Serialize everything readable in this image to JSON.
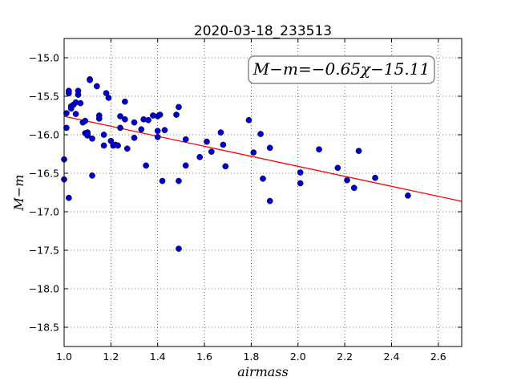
{
  "chart_data": {
    "type": "scatter",
    "title": "2020-03-18_233513",
    "xlabel": "airmass",
    "ylabel": "M−m",
    "xlim": [
      1.0,
      2.7
    ],
    "ylim": [
      -18.75,
      -14.75
    ],
    "y_inverted": true,
    "grid": true,
    "grid_style": "dotted",
    "xticks": [
      "1.0",
      "1.2",
      "1.4",
      "1.6",
      "1.8",
      "2.0",
      "2.2",
      "2.4",
      "2.6"
    ],
    "yticks": [
      "−15.0",
      "−15.5",
      "−16.0",
      "−16.5",
      "−17.0",
      "−17.5",
      "−18.0",
      "−18.5"
    ],
    "annotation": "M−m=−0.65χ−15.11",
    "fit": {
      "slope": -0.65,
      "intercept": -15.11,
      "color": "#ff0000"
    },
    "marker_color": "#0000cc",
    "x": [
      1.0,
      1.0,
      1.02,
      1.02,
      1.02,
      1.03,
      1.01,
      1.03,
      1.01,
      1.04,
      1.05,
      1.06,
      1.05,
      1.06,
      1.07,
      1.08,
      1.09,
      1.09,
      1.1,
      1.1,
      1.11,
      1.11,
      1.12,
      1.1,
      1.12,
      1.15,
      1.15,
      1.14,
      1.17,
      1.17,
      1.18,
      1.19,
      1.2,
      1.21,
      1.23,
      1.24,
      1.24,
      1.22,
      1.26,
      1.26,
      1.27,
      1.3,
      1.3,
      1.33,
      1.34,
      1.36,
      1.35,
      1.38,
      1.4,
      1.4,
      1.4,
      1.41,
      1.43,
      1.42,
      1.48,
      1.49,
      1.49,
      1.49,
      1.52,
      1.52,
      1.58,
      1.61,
      1.63,
      1.67,
      1.68,
      1.69,
      1.79,
      1.81,
      1.84,
      1.85,
      1.88,
      1.88,
      2.01,
      2.01,
      2.09,
      2.17,
      2.21,
      2.24,
      2.26,
      2.33,
      2.47
    ],
    "y": [
      -16.32,
      -16.58,
      -16.82,
      -15.46,
      -15.43,
      -15.63,
      -15.72,
      -15.66,
      -15.91,
      -15.61,
      -15.58,
      -15.43,
      -15.73,
      -15.48,
      -15.59,
      -15.84,
      -15.98,
      -15.82,
      -16.01,
      -15.97,
      -15.28,
      -15.29,
      -16.05,
      -15.99,
      -16.53,
      -15.75,
      -15.79,
      -15.37,
      -16.0,
      -16.14,
      -15.46,
      -15.52,
      -16.08,
      -16.14,
      -16.14,
      -15.76,
      -15.91,
      -16.13,
      -15.57,
      -15.8,
      -16.18,
      -15.84,
      -16.04,
      -15.93,
      -15.8,
      -15.81,
      -16.4,
      -15.75,
      -15.76,
      -15.95,
      -16.03,
      -15.74,
      -15.94,
      -16.6,
      -15.74,
      -15.64,
      -16.6,
      -17.48,
      -16.06,
      -16.4,
      -16.29,
      -16.09,
      -16.22,
      -15.97,
      -16.13,
      -16.41,
      -15.81,
      -16.23,
      -15.99,
      -16.57,
      -16.86,
      -16.17,
      -16.49,
      -16.63,
      -16.19,
      -16.43,
      -16.59,
      -16.69,
      -16.21,
      -16.56,
      -16.79
    ]
  }
}
